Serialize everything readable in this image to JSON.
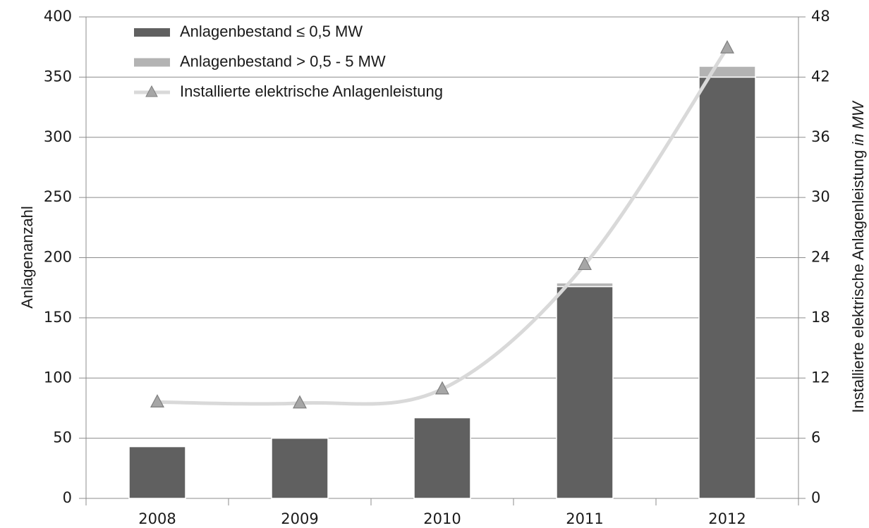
{
  "chart_data": {
    "type": "bar",
    "categories": [
      "2008",
      "2009",
      "2010",
      "2011",
      "2012"
    ],
    "series": [
      {
        "name": "Anlagenbestand ≤ 0,5 MW",
        "color": "#606060",
        "values": [
          43,
          50,
          67,
          176,
          350
        ]
      },
      {
        "name": "Anlagenbestand > 0,5 - 5 MW",
        "color": "#b3b3b3",
        "values": [
          0,
          0,
          0,
          3,
          9
        ]
      },
      {
        "name": "Installierte elektrische Anlagenleistung",
        "type": "line",
        "axis": "y2",
        "color": "#d9d9d9",
        "marker_color": "#a6a6a6",
        "values": [
          9.6,
          9.5,
          10.9,
          23.3,
          44.9
        ]
      }
    ],
    "ylabel": "Anlagenanzahl",
    "y2label": "Installierte elektrische Anlagenleistung",
    "y2label_unit": "in MW",
    "ylim": [
      0,
      400
    ],
    "yticks": [
      0,
      50,
      100,
      150,
      200,
      250,
      300,
      350,
      400
    ],
    "y2lim": [
      0,
      48
    ],
    "y2ticks": [
      0,
      6,
      12,
      18,
      24,
      30,
      36,
      42,
      48
    ],
    "grid": true,
    "stacked": true,
    "legend": "upper left"
  }
}
